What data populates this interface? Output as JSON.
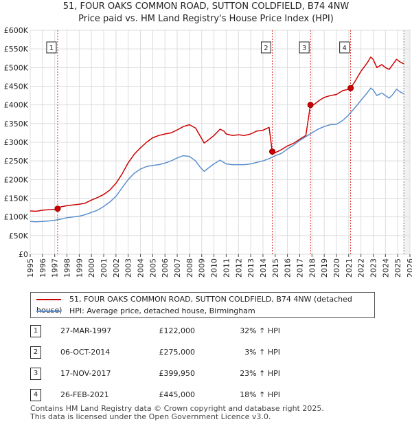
{
  "chart_data": {
    "type": "line",
    "title": "51, FOUR OAKS COMMON ROAD, SUTTON COLDFIELD, B74 4NW",
    "subtitle": "Price paid vs. HM Land Registry's House Price Index (HPI)",
    "xlabel": "",
    "ylabel": "",
    "xlim": [
      1995,
      2026
    ],
    "ylim": [
      0,
      600000
    ],
    "y_ticks": [
      {
        "value": 0,
        "label": "£0"
      },
      {
        "value": 50000,
        "label": "£50K"
      },
      {
        "value": 100000,
        "label": "£100K"
      },
      {
        "value": 150000,
        "label": "£150K"
      },
      {
        "value": 200000,
        "label": "£200K"
      },
      {
        "value": 250000,
        "label": "£250K"
      },
      {
        "value": 300000,
        "label": "£300K"
      },
      {
        "value": 350000,
        "label": "£350K"
      },
      {
        "value": 400000,
        "label": "£400K"
      },
      {
        "value": 450000,
        "label": "£450K"
      },
      {
        "value": 500000,
        "label": "£500K"
      },
      {
        "value": 550000,
        "label": "£550K"
      },
      {
        "value": 600000,
        "label": "£600K"
      }
    ],
    "x_ticks": [
      "1995",
      "1996",
      "1997",
      "1998",
      "1999",
      "2000",
      "2001",
      "2002",
      "2003",
      "2004",
      "2005",
      "2006",
      "2007",
      "2008",
      "2009",
      "2010",
      "2011",
      "2012",
      "2013",
      "2014",
      "2015",
      "2016",
      "2017",
      "2018",
      "2019",
      "2020",
      "2021",
      "2022",
      "2023",
      "2024",
      "2025",
      "2026"
    ],
    "grid": true,
    "legend": "bottom",
    "series": [
      {
        "name": "51, FOUR OAKS COMMON ROAD, SUTTON COLDFIELD, B74 4NW (detached house)",
        "color": "#cc0000",
        "points": [
          [
            1995.0,
            116000
          ],
          [
            1995.5,
            115000
          ],
          [
            1996.0,
            118000
          ],
          [
            1996.5,
            119000
          ],
          [
            1997.0,
            120000
          ],
          [
            1997.24,
            122000
          ],
          [
            1997.5,
            127000
          ],
          [
            1998.0,
            130000
          ],
          [
            1998.5,
            132000
          ],
          [
            1999.0,
            134000
          ],
          [
            1999.5,
            137000
          ],
          [
            2000.0,
            145000
          ],
          [
            2000.5,
            152000
          ],
          [
            2001.0,
            160000
          ],
          [
            2001.5,
            172000
          ],
          [
            2002.0,
            190000
          ],
          [
            2002.5,
            215000
          ],
          [
            2003.0,
            245000
          ],
          [
            2003.5,
            268000
          ],
          [
            2004.0,
            285000
          ],
          [
            2004.5,
            300000
          ],
          [
            2005.0,
            312000
          ],
          [
            2005.5,
            318000
          ],
          [
            2006.0,
            322000
          ],
          [
            2006.5,
            325000
          ],
          [
            2007.0,
            333000
          ],
          [
            2007.5,
            342000
          ],
          [
            2008.0,
            347000
          ],
          [
            2008.5,
            338000
          ],
          [
            2008.9,
            315000
          ],
          [
            2009.2,
            298000
          ],
          [
            2009.5,
            305000
          ],
          [
            2010.0,
            318000
          ],
          [
            2010.5,
            335000
          ],
          [
            2010.8,
            330000
          ],
          [
            2011.0,
            322000
          ],
          [
            2011.5,
            318000
          ],
          [
            2012.0,
            320000
          ],
          [
            2012.5,
            318000
          ],
          [
            2013.0,
            322000
          ],
          [
            2013.5,
            330000
          ],
          [
            2014.0,
            332000
          ],
          [
            2014.5,
            340000
          ],
          [
            2014.76,
            275000
          ],
          [
            2015.0,
            272000
          ],
          [
            2015.5,
            280000
          ],
          [
            2016.0,
            290000
          ],
          [
            2016.5,
            297000
          ],
          [
            2017.0,
            308000
          ],
          [
            2017.5,
            318000
          ],
          [
            2017.88,
            399950
          ],
          [
            2018.2,
            402000
          ],
          [
            2018.6,
            412000
          ],
          [
            2019.0,
            420000
          ],
          [
            2019.5,
            425000
          ],
          [
            2020.0,
            428000
          ],
          [
            2020.5,
            438000
          ],
          [
            2021.0,
            442000
          ],
          [
            2021.16,
            445000
          ],
          [
            2021.5,
            462000
          ],
          [
            2022.0,
            490000
          ],
          [
            2022.5,
            512000
          ],
          [
            2022.8,
            528000
          ],
          [
            2023.0,
            522000
          ],
          [
            2023.3,
            500000
          ],
          [
            2023.7,
            508000
          ],
          [
            2024.0,
            500000
          ],
          [
            2024.3,
            495000
          ],
          [
            2024.6,
            508000
          ],
          [
            2024.9,
            522000
          ],
          [
            2025.2,
            515000
          ],
          [
            2025.5,
            510000
          ]
        ]
      },
      {
        "name": "HPI: Average price, detached house, Birmingham",
        "color": "#5b8fcc",
        "points": [
          [
            1995.0,
            88000
          ],
          [
            1995.5,
            87000
          ],
          [
            1996.0,
            88000
          ],
          [
            1996.5,
            89000
          ],
          [
            1997.0,
            91000
          ],
          [
            1997.5,
            94000
          ],
          [
            1998.0,
            98000
          ],
          [
            1998.5,
            100000
          ],
          [
            1999.0,
            102000
          ],
          [
            1999.5,
            106000
          ],
          [
            2000.0,
            112000
          ],
          [
            2000.5,
            118000
          ],
          [
            2001.0,
            128000
          ],
          [
            2001.5,
            140000
          ],
          [
            2002.0,
            155000
          ],
          [
            2002.5,
            178000
          ],
          [
            2003.0,
            200000
          ],
          [
            2003.5,
            217000
          ],
          [
            2004.0,
            228000
          ],
          [
            2004.5,
            235000
          ],
          [
            2005.0,
            238000
          ],
          [
            2005.5,
            240000
          ],
          [
            2006.0,
            244000
          ],
          [
            2006.5,
            250000
          ],
          [
            2007.0,
            258000
          ],
          [
            2007.5,
            264000
          ],
          [
            2008.0,
            262000
          ],
          [
            2008.5,
            250000
          ],
          [
            2008.9,
            232000
          ],
          [
            2009.2,
            222000
          ],
          [
            2009.6,
            232000
          ],
          [
            2010.0,
            242000
          ],
          [
            2010.5,
            252000
          ],
          [
            2011.0,
            242000
          ],
          [
            2011.5,
            240000
          ],
          [
            2012.0,
            240000
          ],
          [
            2012.5,
            240000
          ],
          [
            2013.0,
            242000
          ],
          [
            2013.5,
            246000
          ],
          [
            2014.0,
            250000
          ],
          [
            2014.5,
            256000
          ],
          [
            2015.0,
            264000
          ],
          [
            2015.5,
            270000
          ],
          [
            2016.0,
            282000
          ],
          [
            2016.5,
            292000
          ],
          [
            2017.0,
            305000
          ],
          [
            2017.5,
            315000
          ],
          [
            2018.0,
            325000
          ],
          [
            2018.5,
            335000
          ],
          [
            2019.0,
            342000
          ],
          [
            2019.5,
            347000
          ],
          [
            2020.0,
            348000
          ],
          [
            2020.5,
            358000
          ],
          [
            2021.0,
            373000
          ],
          [
            2021.5,
            392000
          ],
          [
            2022.0,
            412000
          ],
          [
            2022.5,
            432000
          ],
          [
            2022.8,
            445000
          ],
          [
            2023.0,
            440000
          ],
          [
            2023.3,
            425000
          ],
          [
            2023.7,
            432000
          ],
          [
            2024.0,
            425000
          ],
          [
            2024.3,
            418000
          ],
          [
            2024.6,
            428000
          ],
          [
            2024.9,
            442000
          ],
          [
            2025.2,
            435000
          ],
          [
            2025.5,
            430000
          ]
        ]
      }
    ],
    "sales": [
      {
        "label": "1",
        "x": 1997.24,
        "value": 122000
      },
      {
        "label": "2",
        "x": 2014.76,
        "value": 275000
      },
      {
        "label": "3",
        "x": 2017.88,
        "value": 399950
      },
      {
        "label": "4",
        "x": 2021.16,
        "value": 445000
      }
    ],
    "forecast_start": 2025.5
  },
  "legend": {
    "items": [
      {
        "label": "51, FOUR OAKS COMMON ROAD, SUTTON COLDFIELD, B74 4NW (detached house)",
        "color": "#cc0000"
      },
      {
        "label": "HPI: Average price, detached house, Birmingham",
        "color": "#5b8fcc"
      }
    ]
  },
  "transactions": [
    {
      "num": "1",
      "date": "27-MAR-1997",
      "price": "£122,000",
      "hpi": "32% ↑ HPI"
    },
    {
      "num": "2",
      "date": "06-OCT-2014",
      "price": "£275,000",
      "hpi": "3% ↑ HPI"
    },
    {
      "num": "3",
      "date": "17-NOV-2017",
      "price": "£399,950",
      "hpi": "23% ↑ HPI"
    },
    {
      "num": "4",
      "date": "26-FEB-2021",
      "price": "£445,000",
      "hpi": "18% ↑ HPI"
    }
  ],
  "footer": {
    "line1": "Contains HM Land Registry data © Crown copyright and database right 2025.",
    "line2": "This data is licensed under the Open Government Licence v3.0."
  }
}
